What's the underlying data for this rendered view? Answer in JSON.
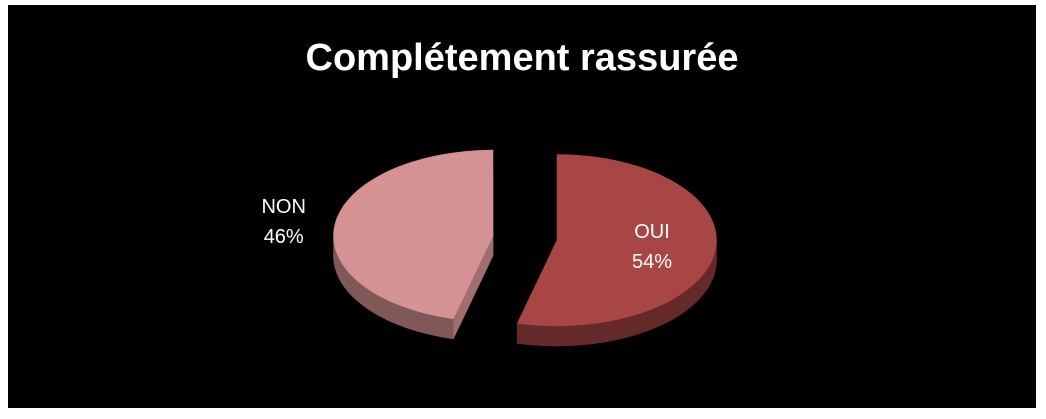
{
  "chart_data": {
    "type": "pie",
    "title": "Complétement rassurée",
    "categories": [
      "OUI",
      "NON"
    ],
    "values": [
      54,
      46
    ],
    "value_labels": [
      "54%",
      "46%"
    ],
    "colors": [
      "#a84545",
      "#d59292"
    ]
  }
}
